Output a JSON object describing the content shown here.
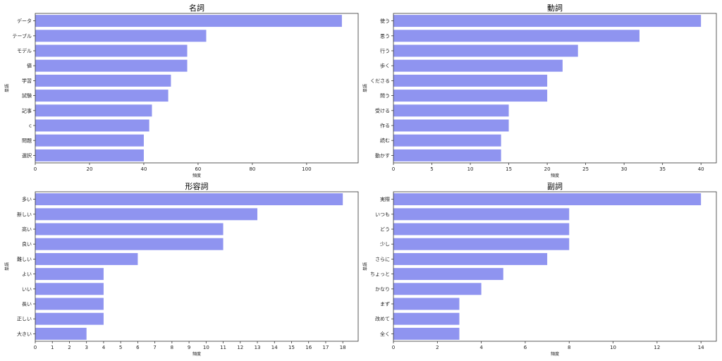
{
  "bar_color": "#8f94f0",
  "axis_color": "#333333",
  "chart_data": [
    {
      "type": "bar",
      "orientation": "horizontal",
      "title": "名詞",
      "xlabel": "頻度",
      "ylabel": "単語",
      "categories": [
        "データ",
        "テーブル",
        "モデル",
        "値",
        "学習",
        "試験",
        "記事",
        "c",
        "問題",
        "選択"
      ],
      "values": [
        113,
        63,
        56,
        56,
        50,
        49,
        43,
        42,
        40,
        40
      ],
      "xlim": [
        0,
        119
      ],
      "xticks": [
        0,
        20,
        40,
        60,
        80,
        100
      ]
    },
    {
      "type": "bar",
      "orientation": "horizontal",
      "title": "動詞",
      "xlabel": "頻度",
      "ylabel": "単語",
      "categories": [
        "使う",
        "思う",
        "行う",
        "歩く",
        "くださる",
        "問う",
        "受ける",
        "作る",
        "読む",
        "動かす"
      ],
      "values": [
        40,
        32,
        24,
        22,
        20,
        20,
        15,
        15,
        14,
        14
      ],
      "xlim": [
        0,
        42
      ],
      "xticks": [
        0,
        5,
        10,
        15,
        20,
        25,
        30,
        35,
        40
      ]
    },
    {
      "type": "bar",
      "orientation": "horizontal",
      "title": "形容詞",
      "xlabel": "頻度",
      "ylabel": "単語",
      "categories": [
        "多い",
        "新しい",
        "高い",
        "良い",
        "難しい",
        "よい",
        "いい",
        "長い",
        "正しい",
        "大きい"
      ],
      "values": [
        18,
        13,
        11,
        11,
        6,
        4,
        4,
        4,
        4,
        3
      ],
      "xlim": [
        0,
        18.9
      ],
      "xticks": [
        0,
        1,
        2,
        3,
        4,
        5,
        6,
        7,
        8,
        9,
        10,
        11,
        12,
        13,
        14,
        15,
        16,
        17,
        18
      ]
    },
    {
      "type": "bar",
      "orientation": "horizontal",
      "title": "副詞",
      "xlabel": "頻度",
      "ylabel": "単語",
      "categories": [
        "実際",
        "いつも",
        "どう",
        "少し",
        "さらに",
        "ちょっと",
        "かなり",
        "まず",
        "改めて",
        "全く"
      ],
      "values": [
        14,
        8,
        8,
        8,
        7,
        5,
        4,
        3,
        3,
        3
      ],
      "xlim": [
        0,
        14.7
      ],
      "xticks": [
        0,
        2,
        4,
        6,
        8,
        10,
        12,
        14
      ]
    }
  ]
}
